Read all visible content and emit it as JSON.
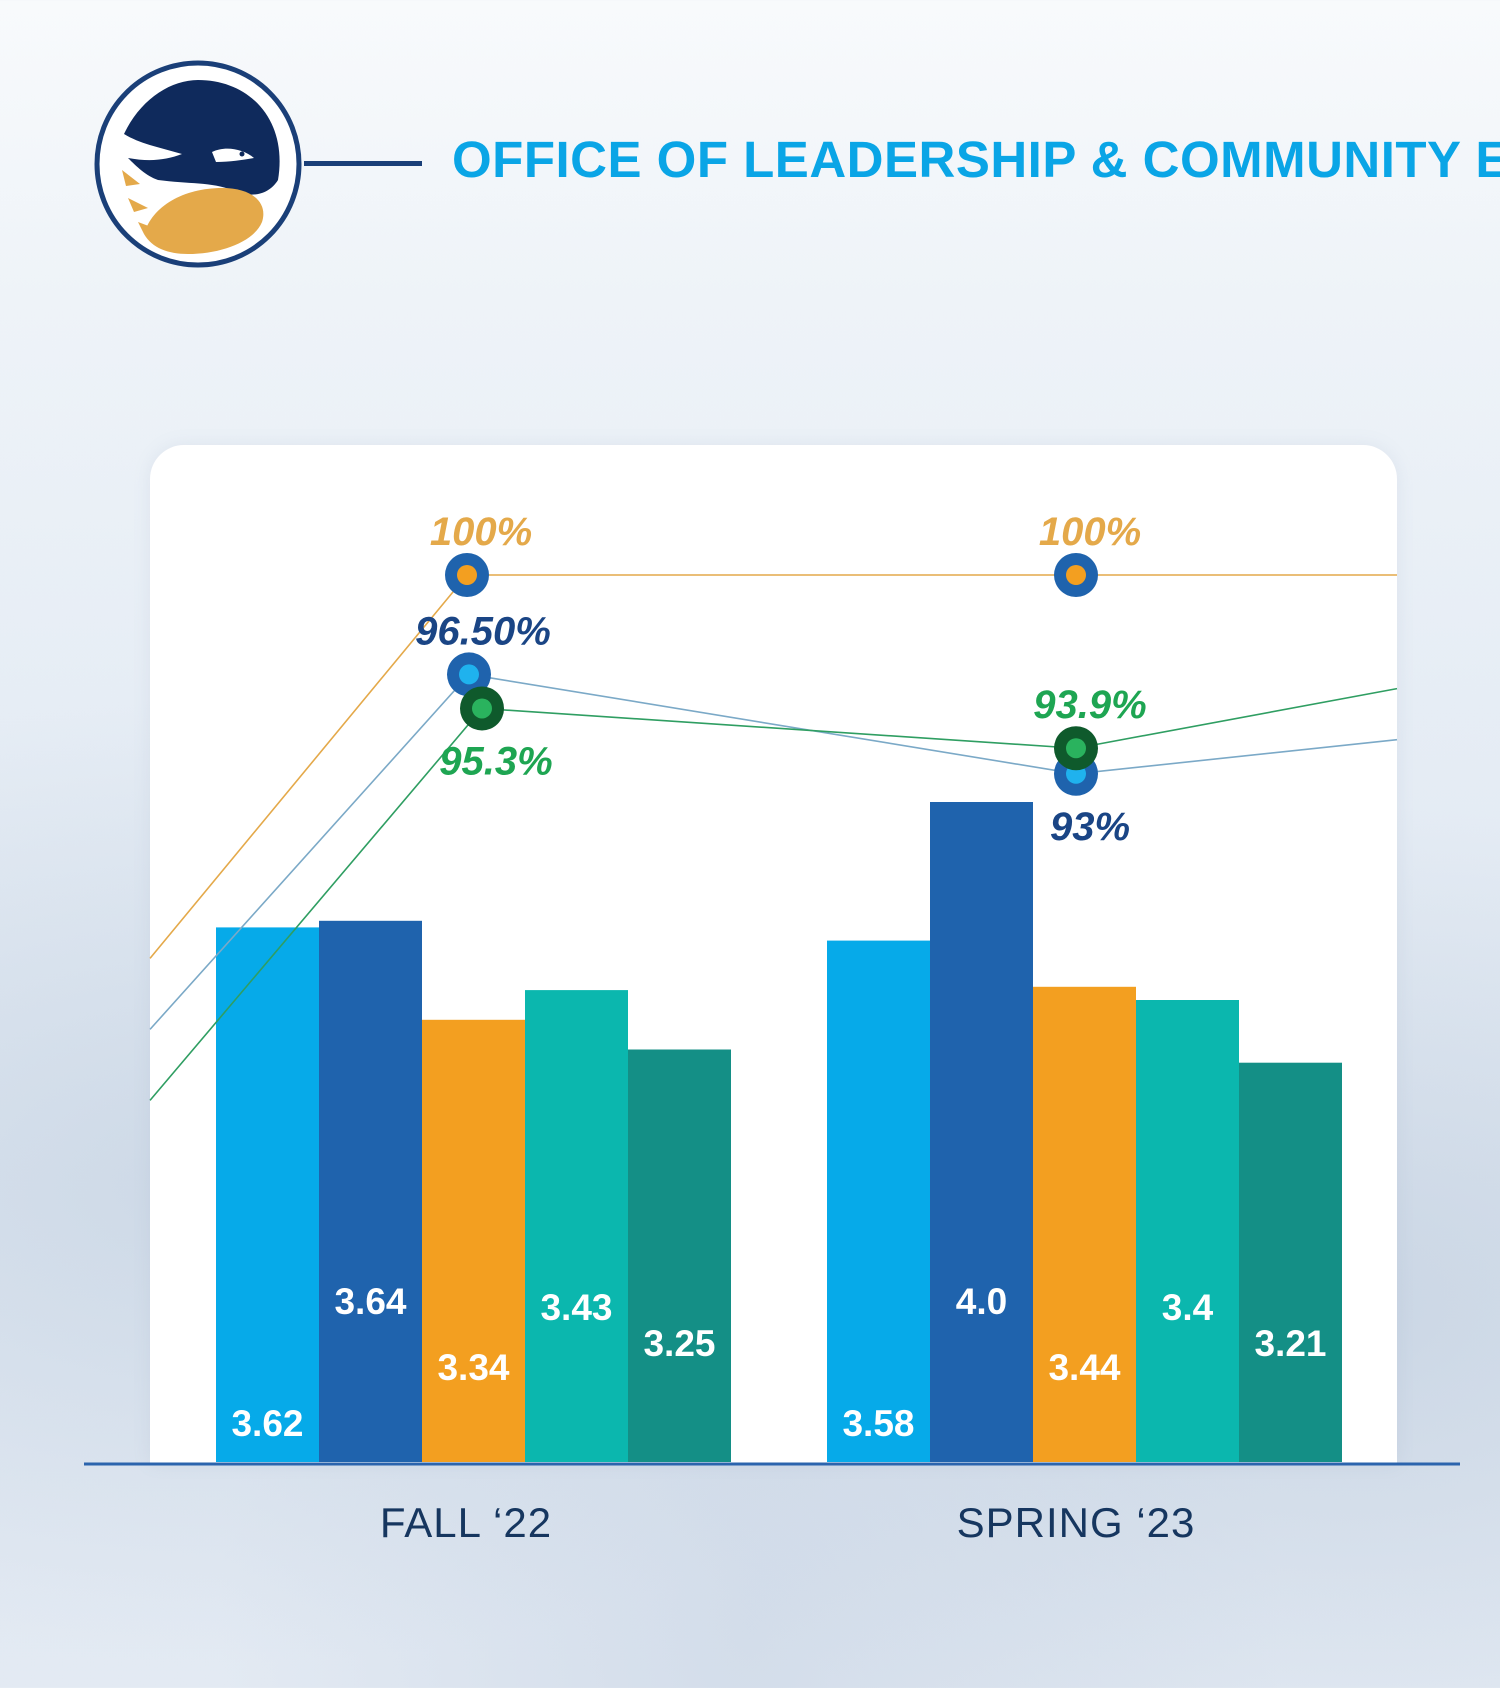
{
  "header": {
    "title": "OFFICE OF LEADERSHIP & COMMUNITY E"
  },
  "colors": {
    "navy": "#0f2a5c",
    "gold": "#e4a94a",
    "title_blue": "#0aa5e6"
  },
  "chart_data": {
    "type": "bar",
    "categories": [
      "FALL ‘22",
      "SPRING ‘23"
    ],
    "series": [
      {
        "name": "series-1",
        "color": "#06aae9",
        "values": [
          3.62,
          3.58
        ],
        "labels": [
          "3.62",
          "3.58"
        ]
      },
      {
        "name": "series-2",
        "color": "#1f63ad",
        "values": [
          3.64,
          4.0
        ],
        "labels": [
          "3.64",
          "4.0"
        ]
      },
      {
        "name": "series-3",
        "color": "#f39f20",
        "values": [
          3.34,
          3.44
        ],
        "labels": [
          "3.34",
          "3.44"
        ]
      },
      {
        "name": "series-4",
        "color": "#0bb7ae",
        "values": [
          3.43,
          3.4
        ],
        "labels": [
          "3.43",
          "3.4"
        ]
      },
      {
        "name": "series-5",
        "color": "#148f86",
        "values": [
          3.25,
          3.21
        ],
        "labels": [
          "3.25",
          "3.21"
        ]
      }
    ],
    "ylim": [
      2.0,
      4.0
    ],
    "percent_lines": [
      {
        "name": "line-gold",
        "color": "#e4a94a",
        "dot_outer": "#1f63ad",
        "dot_inner": "#f39f20",
        "text_color": "#e4a94a",
        "values": [
          100,
          100
        ],
        "labels": [
          "100%",
          "100%"
        ],
        "label_pos": [
          "above",
          "above"
        ],
        "enter": 86.5,
        "exit": 100
      },
      {
        "name": "line-blue",
        "color": "#7ba9c7",
        "dot_outer": "#1f63ad",
        "dot_inner": "#1fb2ee",
        "text_color": "#1a4585",
        "values": [
          96.5,
          93.0
        ],
        "labels": [
          "96.50%",
          "93%"
        ],
        "label_pos": [
          "above",
          "below"
        ],
        "enter": 84.0,
        "exit": 94.2
      },
      {
        "name": "line-green",
        "color": "#2f9e62",
        "dot_outer": "#0f5a2c",
        "dot_inner": "#2ab35e",
        "text_color": "#1ea552",
        "values": [
          95.3,
          93.9
        ],
        "labels": [
          "95.3%",
          "93.9%"
        ],
        "label_pos": [
          "below",
          "above"
        ],
        "enter": 81.5,
        "exit": 96.0
      }
    ],
    "pct_range": [
      75,
      101
    ],
    "title": "",
    "xlabel": "",
    "ylabel": "",
    "grid": false
  }
}
